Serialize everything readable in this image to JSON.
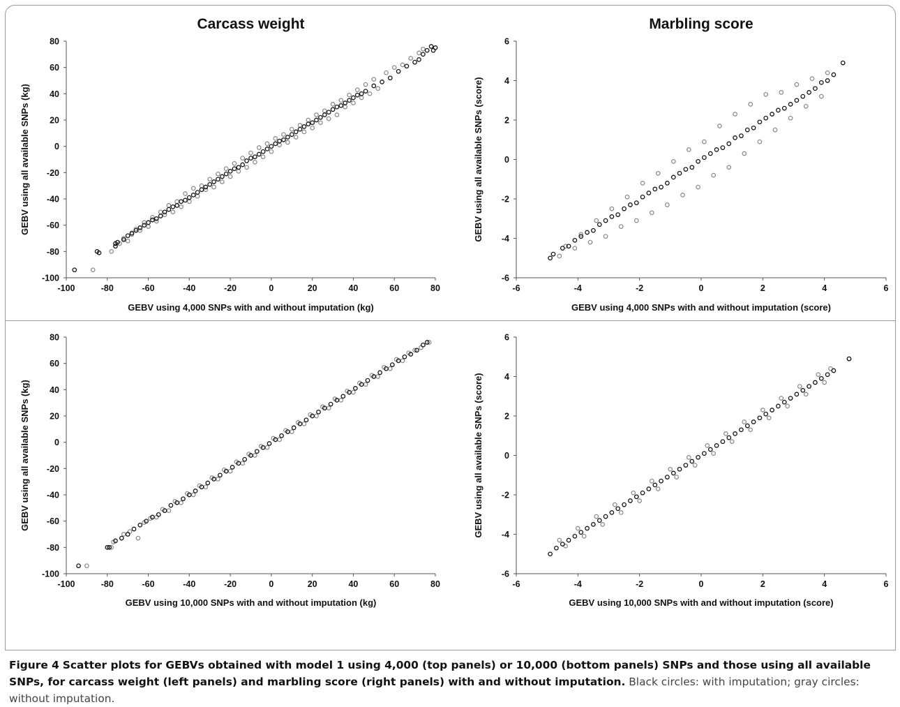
{
  "caption": {
    "label": "Figure 4",
    "title": "Scatter plots for GEBVs obtained with model 1 using 4,000 (top panels) or 10,000 (bottom panels) SNPs and those using all available SNPs, for carcass weight (left panels) and marbling score (right panels) with and without imputation.",
    "note": "Black circles: with imputation; gray circles: without imputation."
  },
  "colors": {
    "with_imputation": "#111111",
    "without_imputation": "#8c8c8c",
    "frame": "#9a9a9a"
  },
  "chart_data": [
    {
      "type": "scatter",
      "title": "Carcass weight",
      "xlabel": "GEBV using 4,000 SNPs with and without imputation (kg)",
      "ylabel": "GEBV using all available SNPs (kg)",
      "xlim": [
        -100,
        80
      ],
      "ylim": [
        -100,
        80
      ],
      "xticks": [
        "-100",
        "-80",
        "-60",
        "-40",
        "-20",
        "0",
        "20",
        "40",
        "60",
        "80"
      ],
      "yticks": [
        "-100",
        "-80",
        "-60",
        "-40",
        "-20",
        "0",
        "20",
        "40",
        "60",
        "80"
      ],
      "grid": false,
      "series": [
        {
          "x": [
            -96,
            -85,
            -84,
            -76,
            -76,
            -75,
            -72,
            -70,
            -68,
            -66,
            -64,
            -62,
            -60,
            -58,
            -56,
            -54,
            -52,
            -50,
            -48,
            -46,
            -44,
            -42,
            -40,
            -38,
            -36,
            -34,
            -32,
            -30,
            -28,
            -26,
            -24,
            -22,
            -20,
            -18,
            -16,
            -14,
            -12,
            -10,
            -8,
            -6,
            -4,
            -2,
            0,
            2,
            4,
            6,
            8,
            10,
            12,
            14,
            16,
            18,
            20,
            22,
            24,
            26,
            28,
            30,
            32,
            34,
            36,
            38,
            40,
            42,
            44,
            46,
            50,
            54,
            58,
            62,
            66,
            70,
            72,
            74,
            76,
            78,
            79,
            80
          ],
          "y": [
            -94,
            -80,
            -81,
            -74,
            -76,
            -73,
            -71,
            -68,
            -66,
            -64,
            -62,
            -60,
            -58,
            -56,
            -55,
            -53,
            -50,
            -48,
            -46,
            -45,
            -42,
            -41,
            -39,
            -37,
            -35,
            -33,
            -31,
            -29,
            -27,
            -25,
            -23,
            -21,
            -19,
            -17,
            -16,
            -14,
            -11,
            -9,
            -8,
            -6,
            -4,
            -2,
            0,
            2,
            4,
            5,
            7,
            9,
            11,
            13,
            15,
            17,
            18,
            20,
            22,
            24,
            26,
            28,
            30,
            31,
            33,
            35,
            37,
            39,
            40,
            42,
            46,
            49,
            52,
            57,
            61,
            64,
            66,
            70,
            73,
            76,
            73,
            75
          ]
        },
        {
          "x": [
            -87,
            -78,
            -74,
            -72,
            -70,
            -68,
            -66,
            -64,
            -62,
            -60,
            -58,
            -56,
            -54,
            -52,
            -50,
            -48,
            -46,
            -44,
            -42,
            -40,
            -38,
            -36,
            -34,
            -32,
            -30,
            -28,
            -26,
            -24,
            -22,
            -20,
            -18,
            -16,
            -14,
            -12,
            -10,
            -8,
            -6,
            -4,
            -2,
            0,
            2,
            4,
            6,
            8,
            10,
            12,
            14,
            16,
            18,
            20,
            22,
            24,
            26,
            28,
            30,
            32,
            34,
            36,
            38,
            40,
            42,
            44,
            46,
            48,
            50,
            52,
            56,
            60,
            64,
            68,
            72,
            74
          ],
          "y": [
            -94,
            -80,
            -74,
            -70,
            -72,
            -67,
            -63,
            -64,
            -58,
            -61,
            -54,
            -57,
            -50,
            -52,
            -45,
            -50,
            -42,
            -46,
            -36,
            -42,
            -32,
            -38,
            -30,
            -33,
            -25,
            -31,
            -21,
            -27,
            -17,
            -23,
            -13,
            -19,
            -9,
            -16,
            -5,
            -12,
            -1,
            -8,
            2,
            -4,
            6,
            1,
            9,
            3,
            13,
            7,
            16,
            11,
            20,
            14,
            24,
            18,
            27,
            21,
            32,
            24,
            35,
            30,
            39,
            33,
            43,
            37,
            47,
            40,
            51,
            44,
            56,
            60,
            62,
            67,
            71,
            74
          ]
        }
      ]
    },
    {
      "type": "scatter",
      "title": "Marbling score",
      "xlabel": "GEBV using 4,000 SNPs with and without imputation (score)",
      "ylabel": "GEBV using all available SNPs (score)",
      "xlim": [
        -6,
        6
      ],
      "ylim": [
        -6,
        6
      ],
      "xticks": [
        "-6",
        "-4",
        "-2",
        "0",
        "2",
        "4",
        "6"
      ],
      "yticks": [
        "-6",
        "-4",
        "-2",
        "0",
        "2",
        "4",
        "6"
      ],
      "grid": false,
      "series": [
        {
          "x": [
            -4.9,
            -4.8,
            -4.5,
            -4.3,
            -4.1,
            -3.9,
            -3.7,
            -3.5,
            -3.3,
            -3.1,
            -2.9,
            -2.7,
            -2.5,
            -2.3,
            -2.1,
            -1.9,
            -1.7,
            -1.5,
            -1.3,
            -1.1,
            -0.9,
            -0.7,
            -0.5,
            -0.3,
            -0.1,
            0.1,
            0.3,
            0.5,
            0.7,
            0.9,
            1.1,
            1.3,
            1.5,
            1.7,
            1.9,
            2.1,
            2.3,
            2.5,
            2.7,
            2.9,
            3.1,
            3.3,
            3.5,
            3.7,
            3.9,
            4.1,
            4.3,
            4.6
          ],
          "y": [
            -5.0,
            -4.8,
            -4.5,
            -4.4,
            -4.1,
            -3.9,
            -3.7,
            -3.6,
            -3.3,
            -3.1,
            -2.9,
            -2.8,
            -2.5,
            -2.3,
            -2.2,
            -1.9,
            -1.7,
            -1.5,
            -1.4,
            -1.2,
            -0.9,
            -0.7,
            -0.5,
            -0.4,
            -0.1,
            0.1,
            0.3,
            0.5,
            0.6,
            0.8,
            1.1,
            1.2,
            1.5,
            1.6,
            1.9,
            2.1,
            2.3,
            2.5,
            2.6,
            2.8,
            3.0,
            3.2,
            3.4,
            3.6,
            3.9,
            4.0,
            4.3,
            4.9
          ]
        },
        {
          "x": [
            -4.6,
            -4.4,
            -4.1,
            -3.9,
            -3.6,
            -3.4,
            -3.1,
            -2.9,
            -2.6,
            -2.4,
            -2.1,
            -1.9,
            -1.6,
            -1.4,
            -1.1,
            -0.9,
            -0.6,
            -0.4,
            -0.1,
            0.1,
            0.4,
            0.6,
            0.9,
            1.1,
            1.4,
            1.6,
            1.9,
            2.1,
            2.4,
            2.6,
            2.9,
            3.1,
            3.4,
            3.6,
            3.9,
            4.1
          ],
          "y": [
            -4.9,
            -4.4,
            -4.5,
            -3.8,
            -4.2,
            -3.1,
            -3.9,
            -2.5,
            -3.4,
            -1.9,
            -3.1,
            -1.2,
            -2.7,
            -0.7,
            -2.3,
            -0.1,
            -1.8,
            0.5,
            -1.4,
            0.9,
            -0.8,
            1.7,
            -0.4,
            2.3,
            0.3,
            2.8,
            0.9,
            3.3,
            1.5,
            3.4,
            2.1,
            3.8,
            2.7,
            4.1,
            3.2,
            4.4
          ]
        }
      ]
    },
    {
      "type": "scatter",
      "title": "",
      "xlabel": "GEBV using 10,000 SNPs with and without imputation (kg)",
      "ylabel": "GEBV using all available SNPs (kg)",
      "xlim": [
        -100,
        80
      ],
      "ylim": [
        -100,
        80
      ],
      "xticks": [
        "-100",
        "-80",
        "-60",
        "-40",
        "-20",
        "0",
        "20",
        "40",
        "60",
        "80"
      ],
      "yticks": [
        "-100",
        "-80",
        "-60",
        "-40",
        "-20",
        "0",
        "20",
        "40",
        "60",
        "80"
      ],
      "grid": false,
      "series": [
        {
          "x": [
            -94,
            -80,
            -79,
            -76,
            -73,
            -70,
            -67,
            -64,
            -61,
            -58,
            -55,
            -52,
            -49,
            -46,
            -43,
            -40,
            -37,
            -34,
            -31,
            -28,
            -25,
            -22,
            -19,
            -16,
            -13,
            -10,
            -7,
            -4,
            -1,
            2,
            5,
            8,
            11,
            14,
            17,
            20,
            23,
            26,
            29,
            32,
            35,
            38,
            41,
            44,
            47,
            50,
            53,
            56,
            59,
            62,
            65,
            68,
            71,
            74,
            76
          ],
          "y": [
            -94,
            -80,
            -80,
            -75,
            -73,
            -70,
            -66,
            -63,
            -60,
            -57,
            -55,
            -52,
            -48,
            -46,
            -43,
            -40,
            -37,
            -34,
            -31,
            -28,
            -25,
            -22,
            -19,
            -16,
            -13,
            -10,
            -7,
            -4,
            -1,
            2,
            5,
            8,
            11,
            14,
            17,
            20,
            23,
            26,
            29,
            32,
            35,
            38,
            41,
            44,
            47,
            50,
            53,
            56,
            59,
            62,
            65,
            67,
            70,
            74,
            76
          ]
        },
        {
          "x": [
            -90,
            -78,
            -77,
            -72,
            -69,
            -65,
            -62,
            -59,
            -56,
            -53,
            -50,
            -47,
            -44,
            -41,
            -38,
            -35,
            -32,
            -29,
            -26,
            -23,
            -20,
            -17,
            -14,
            -11,
            -8,
            -5,
            -2,
            1,
            4,
            7,
            10,
            13,
            16,
            19,
            22,
            25,
            28,
            31,
            34,
            37,
            40,
            43,
            46,
            49,
            52,
            55,
            58,
            61,
            64,
            67,
            70,
            73,
            77
          ],
          "y": [
            -94,
            -80,
            -76,
            -70,
            -68,
            -73,
            -61,
            -58,
            -57,
            -51,
            -52,
            -45,
            -46,
            -39,
            -40,
            -33,
            -34,
            -27,
            -28,
            -21,
            -22,
            -15,
            -16,
            -9,
            -10,
            -3,
            -4,
            3,
            2,
            9,
            8,
            15,
            14,
            21,
            20,
            27,
            26,
            33,
            32,
            39,
            38,
            45,
            44,
            51,
            50,
            57,
            56,
            63,
            62,
            68,
            70,
            72,
            76
          ]
        }
      ]
    },
    {
      "type": "scatter",
      "title": "",
      "xlabel": "GEBV using 10,000 SNPs with and without imputation (score)",
      "ylabel": "GEBV using all available SNPs (score)",
      "xlim": [
        -6,
        6
      ],
      "ylim": [
        -6,
        6
      ],
      "xticks": [
        "-6",
        "-4",
        "-2",
        "0",
        "2",
        "4",
        "6"
      ],
      "yticks": [
        "-6",
        "-4",
        "-2",
        "0",
        "2",
        "4",
        "6"
      ],
      "grid": false,
      "series": [
        {
          "x": [
            -4.9,
            -4.7,
            -4.5,
            -4.3,
            -4.1,
            -3.9,
            -3.7,
            -3.5,
            -3.3,
            -3.1,
            -2.9,
            -2.7,
            -2.5,
            -2.3,
            -2.1,
            -1.9,
            -1.7,
            -1.5,
            -1.3,
            -1.1,
            -0.9,
            -0.7,
            -0.5,
            -0.3,
            -0.1,
            0.1,
            0.3,
            0.5,
            0.7,
            0.9,
            1.1,
            1.3,
            1.5,
            1.7,
            1.9,
            2.1,
            2.3,
            2.5,
            2.7,
            2.9,
            3.1,
            3.3,
            3.5,
            3.7,
            3.9,
            4.1,
            4.3,
            4.8
          ],
          "y": [
            -5.0,
            -4.7,
            -4.5,
            -4.3,
            -4.1,
            -3.9,
            -3.7,
            -3.5,
            -3.3,
            -3.1,
            -2.9,
            -2.7,
            -2.5,
            -2.3,
            -2.1,
            -1.9,
            -1.7,
            -1.5,
            -1.3,
            -1.1,
            -0.9,
            -0.7,
            -0.5,
            -0.3,
            -0.1,
            0.1,
            0.3,
            0.5,
            0.7,
            0.9,
            1.1,
            1.3,
            1.5,
            1.7,
            1.9,
            2.1,
            2.3,
            2.5,
            2.7,
            2.9,
            3.1,
            3.3,
            3.5,
            3.7,
            3.9,
            4.1,
            4.3,
            4.9
          ]
        },
        {
          "x": [
            -4.6,
            -4.4,
            -4.0,
            -3.8,
            -3.4,
            -3.2,
            -2.8,
            -2.6,
            -2.2,
            -2.0,
            -1.6,
            -1.4,
            -1.0,
            -0.8,
            -0.4,
            -0.2,
            0.2,
            0.4,
            0.8,
            1.0,
            1.4,
            1.6,
            2.0,
            2.2,
            2.6,
            2.8,
            3.2,
            3.4,
            3.8,
            4.0,
            4.2,
            4.8
          ],
          "y": [
            -4.3,
            -4.6,
            -3.7,
            -4.1,
            -3.1,
            -3.5,
            -2.5,
            -2.9,
            -1.9,
            -2.3,
            -1.3,
            -1.7,
            -0.7,
            -1.1,
            -0.1,
            -0.5,
            0.5,
            0.1,
            1.1,
            0.7,
            1.7,
            1.3,
            2.3,
            1.9,
            2.9,
            2.5,
            3.5,
            3.1,
            4.1,
            3.7,
            4.4,
            4.9
          ]
        }
      ]
    }
  ]
}
